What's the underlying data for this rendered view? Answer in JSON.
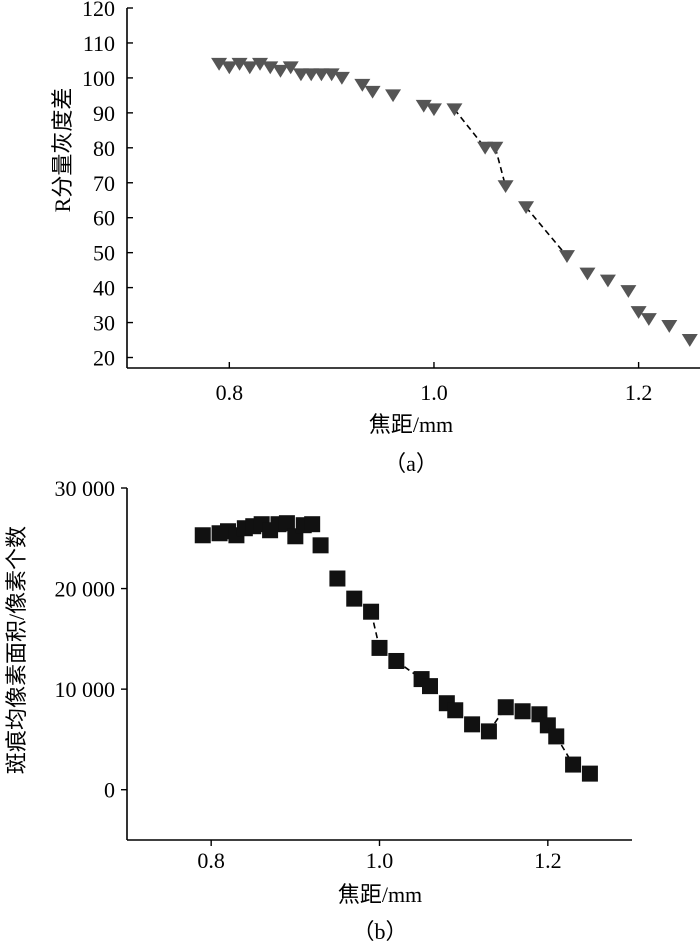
{
  "chart_data": [
    {
      "type": "scatter",
      "panel_label": "（a）",
      "xlabel": "焦距/mm",
      "ylabel": "R分量灰度差",
      "xlim": [
        0.7,
        1.26
      ],
      "ylim": [
        17,
        120
      ],
      "xticks": [
        0.8,
        1.0,
        1.2
      ],
      "xtick_labels": [
        "0.8",
        "1.0",
        "1.2"
      ],
      "yticks": [
        20,
        30,
        40,
        50,
        60,
        70,
        80,
        90,
        100,
        110,
        120
      ],
      "ytick_labels": [
        "20",
        "30",
        "40",
        "50",
        "60",
        "70",
        "80",
        "90",
        "100",
        "110",
        "120"
      ],
      "marker": "triangle-down",
      "color": "#555555",
      "series": [
        {
          "x": [
            0.79,
            0.8,
            0.81,
            0.82,
            0.83,
            0.84,
            0.85,
            0.86,
            0.87,
            0.88,
            0.89,
            0.9,
            0.91,
            0.93,
            0.94,
            0.96,
            0.99,
            1.0,
            1.02,
            1.05,
            1.06,
            1.07,
            1.09,
            1.13,
            1.15,
            1.17,
            1.19,
            1.2,
            1.21,
            1.23,
            1.25
          ],
          "y": [
            104,
            103,
            104,
            103,
            104,
            103,
            102,
            103,
            101,
            101,
            101,
            101,
            100,
            98,
            96,
            95,
            92,
            91,
            91,
            80,
            80,
            69,
            63,
            49,
            44,
            42,
            39,
            33,
            31,
            29,
            25
          ]
        }
      ],
      "dashed_segments": [
        [
          [
            1.02,
            91
          ],
          [
            1.05,
            80
          ]
        ],
        [
          [
            1.06,
            80
          ],
          [
            1.07,
            69
          ]
        ],
        [
          [
            1.09,
            63
          ],
          [
            1.13,
            49
          ]
        ]
      ]
    },
    {
      "type": "scatter",
      "panel_label": "（b）",
      "xlabel": "焦距/mm",
      "ylabel": "斑痕均像素面积/像素个数",
      "xlim": [
        0.7,
        1.3
      ],
      "ylim": [
        -5000,
        30000
      ],
      "xticks": [
        0.8,
        1.0,
        1.2
      ],
      "xtick_labels": [
        "0.8",
        "1.0",
        "1.2"
      ],
      "yticks": [
        0,
        10000,
        20000,
        30000
      ],
      "ytick_labels": [
        "0",
        "10 000",
        "20 000",
        "30 000"
      ],
      "marker": "square",
      "color": "#111111",
      "series": [
        {
          "x": [
            0.79,
            0.81,
            0.82,
            0.83,
            0.84,
            0.85,
            0.86,
            0.87,
            0.88,
            0.89,
            0.9,
            0.91,
            0.92,
            0.93,
            0.95,
            0.97,
            0.99,
            1.0,
            1.02,
            1.05,
            1.06,
            1.08,
            1.09,
            1.11,
            1.13,
            1.15,
            1.17,
            1.19,
            1.2,
            1.21,
            1.23,
            1.25
          ],
          "y": [
            25300,
            25500,
            25700,
            25300,
            26000,
            26200,
            26400,
            25800,
            26400,
            26500,
            25200,
            26300,
            26400,
            24300,
            21000,
            19000,
            17700,
            14100,
            12800,
            11000,
            10300,
            8600,
            7900,
            6500,
            5800,
            8200,
            7800,
            7500,
            6400,
            5300,
            2500,
            1600
          ]
        }
      ],
      "dashed_segments": [
        [
          [
            1.0,
            14100
          ],
          [
            0.99,
            17700
          ]
        ],
        [
          [
            1.02,
            12800
          ],
          [
            1.05,
            11000
          ]
        ],
        [
          [
            1.13,
            5800
          ],
          [
            1.15,
            8200
          ]
        ],
        [
          [
            1.21,
            5300
          ],
          [
            1.23,
            2500
          ]
        ]
      ]
    }
  ]
}
